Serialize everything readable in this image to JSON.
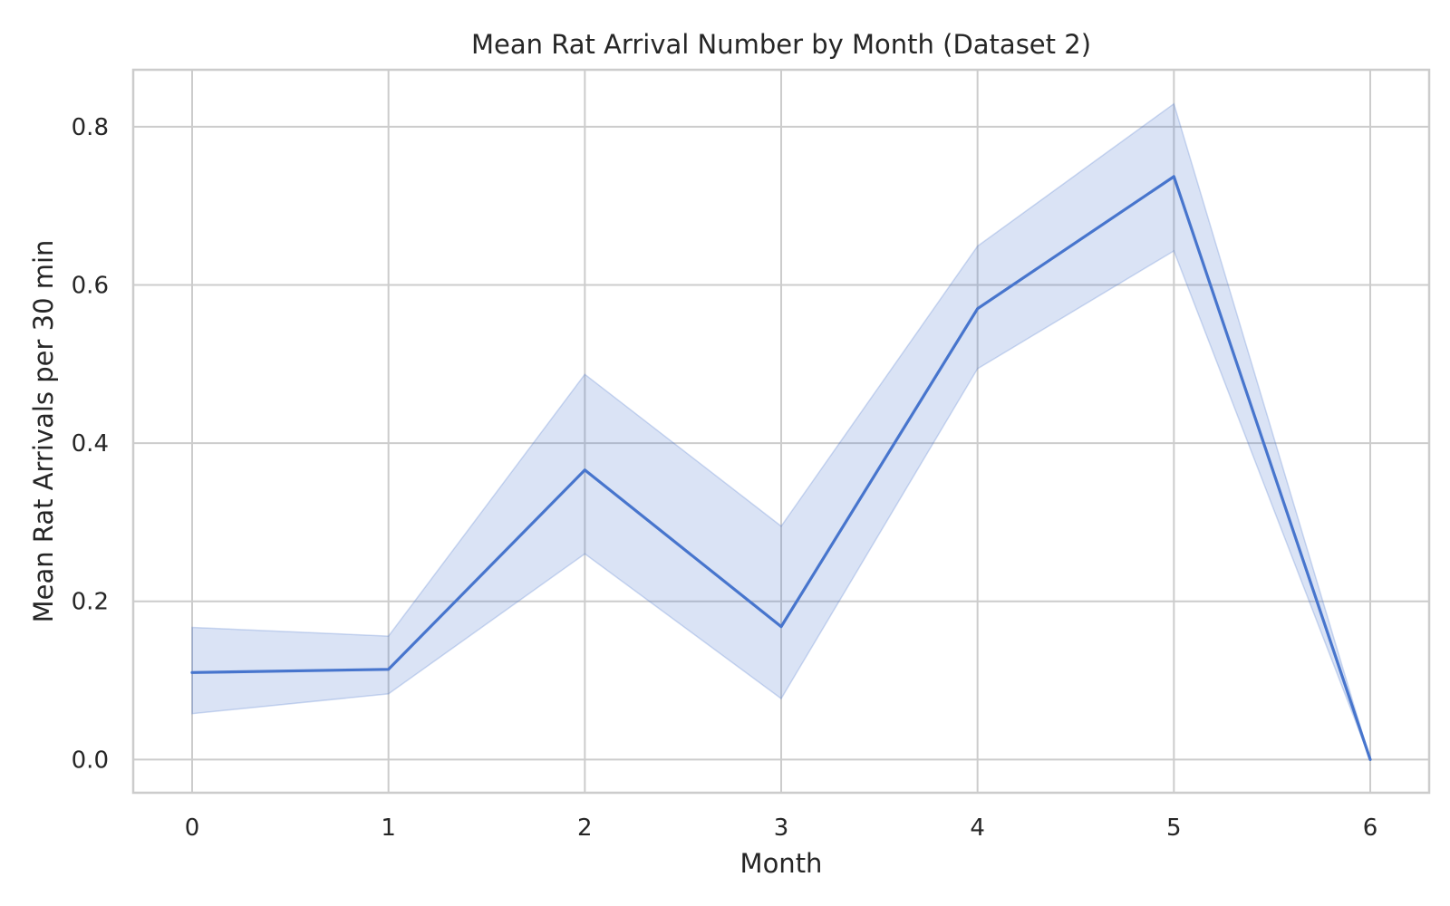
{
  "chart_data": {
    "type": "line",
    "title": "Mean Rat Arrival Number by Month (Dataset 2)",
    "xlabel": "Month",
    "ylabel": "Mean Rat Arrivals per 30 min",
    "x": [
      0,
      1,
      2,
      3,
      4,
      5,
      6
    ],
    "xticks": [
      "0",
      "1",
      "2",
      "3",
      "4",
      "5",
      "6"
    ],
    "xlim": [
      -0.3,
      6.3
    ],
    "yticks": [
      "0.0",
      "0.2",
      "0.4",
      "0.6",
      "0.8"
    ],
    "ytick_values": [
      0.0,
      0.2,
      0.4,
      0.6,
      0.8
    ],
    "ylim": [
      -0.042,
      0.872
    ],
    "grid": true,
    "series": [
      {
        "values": [
          0.11,
          0.114,
          0.366,
          0.168,
          0.57,
          0.737,
          0.0
        ],
        "ci_lower": [
          0.058,
          0.083,
          0.26,
          0.077,
          0.494,
          0.643,
          0.0
        ],
        "ci_upper": [
          0.167,
          0.156,
          0.487,
          0.295,
          0.649,
          0.829,
          0.0
        ],
        "color": "#4775cd",
        "band_color": "#4775cd"
      }
    ]
  }
}
